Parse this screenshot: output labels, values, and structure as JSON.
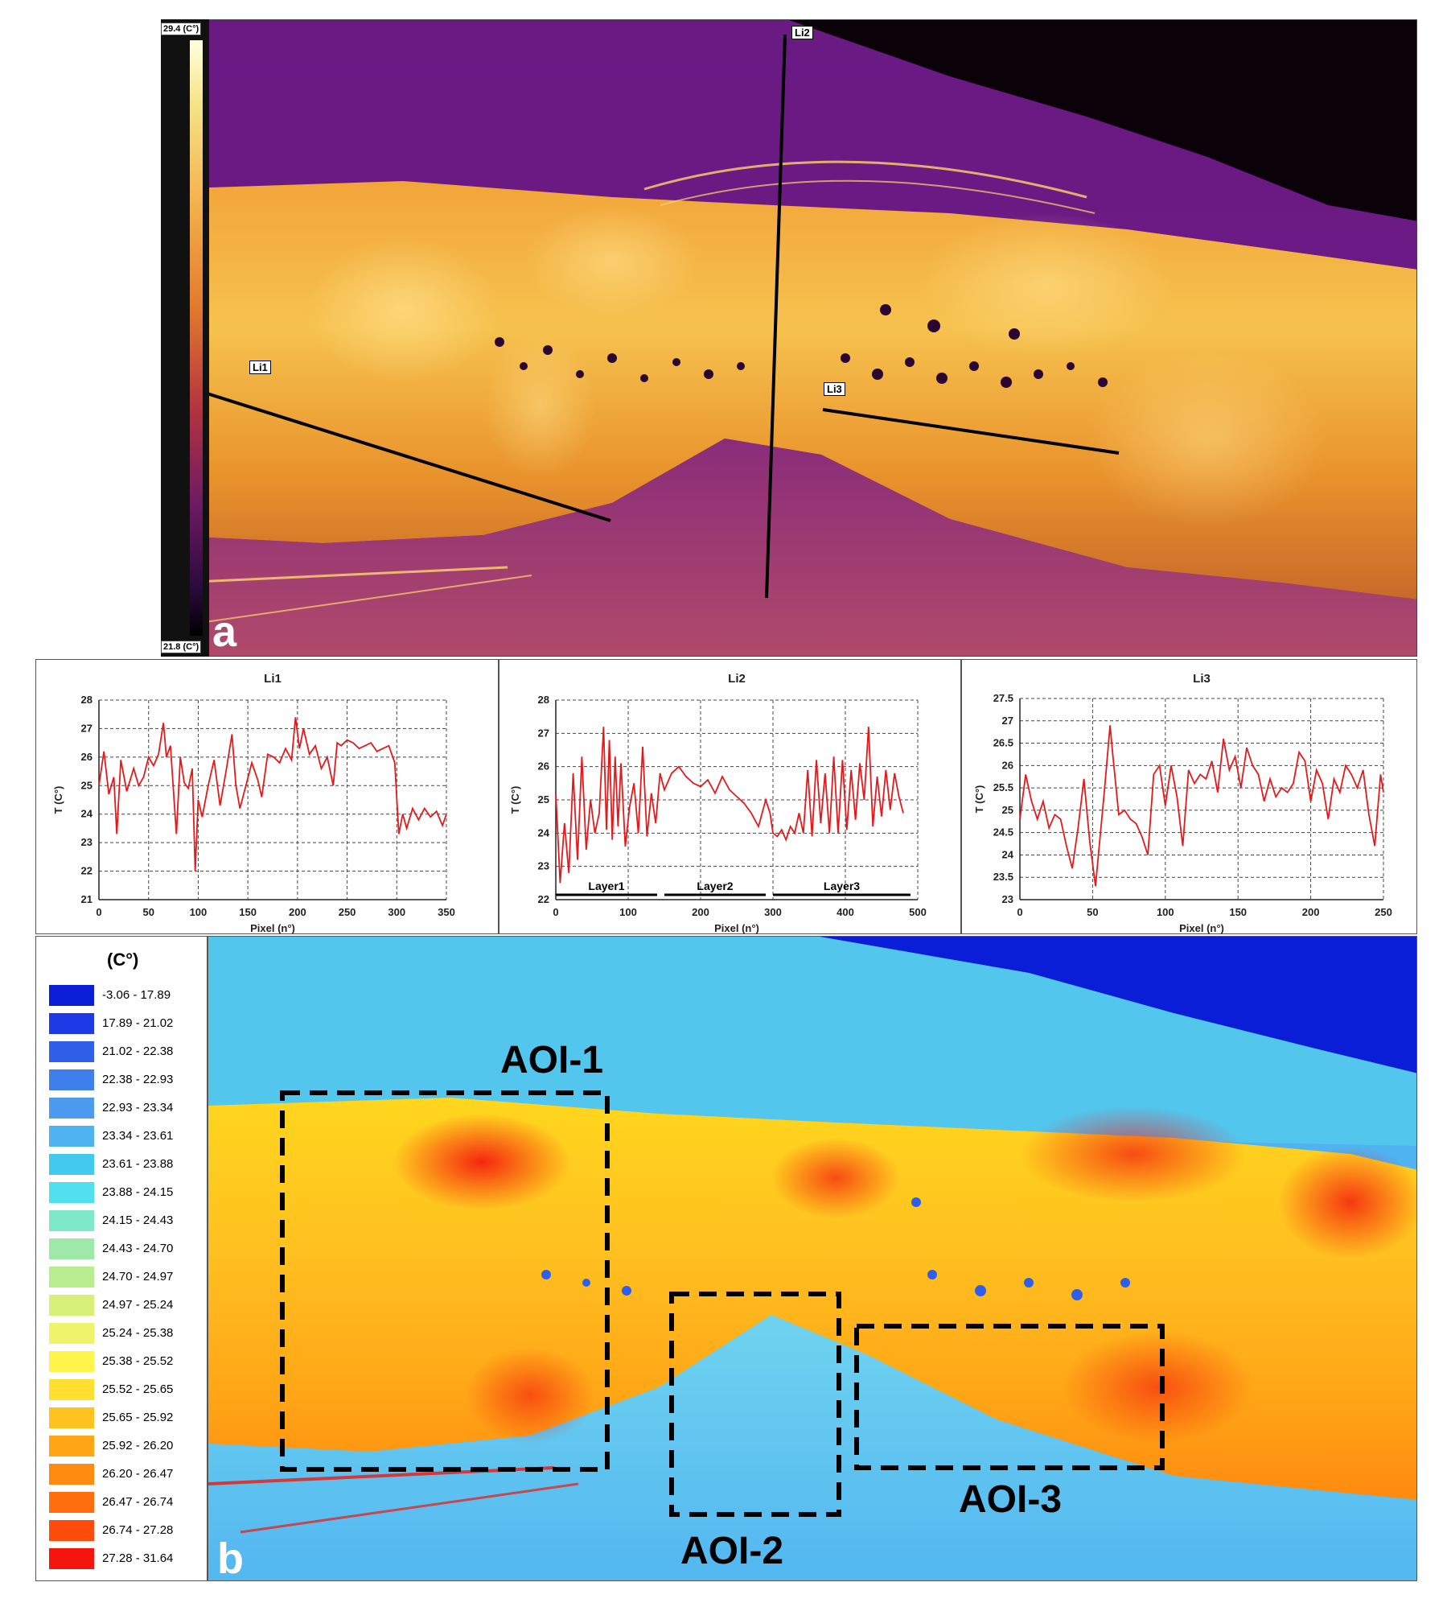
{
  "panel_a": {
    "letter": "a",
    "scale_max": "29.4 (C°)",
    "scale_min": "21.8 (C°)",
    "line_tags": [
      "Li1",
      "Li2",
      "Li3"
    ]
  },
  "panel_b": {
    "letter": "b",
    "legend_title": "(C°)",
    "legend": [
      {
        "label": "-3.06 - 17.89",
        "color": "#0a1ed8"
      },
      {
        "label": "17.89 - 21.02",
        "color": "#1e3ae6"
      },
      {
        "label": "21.02 - 22.38",
        "color": "#2f5ee8"
      },
      {
        "label": "22.38 - 22.93",
        "color": "#3f7fec"
      },
      {
        "label": "22.93 - 23.34",
        "color": "#4c9bef"
      },
      {
        "label": "23.34 - 23.61",
        "color": "#4fb3f1"
      },
      {
        "label": "23.61 - 23.88",
        "color": "#42c9f0"
      },
      {
        "label": "23.88 - 24.15",
        "color": "#53e0ee"
      },
      {
        "label": "24.15 - 24.43",
        "color": "#7ee8c8"
      },
      {
        "label": "24.43 - 24.70",
        "color": "#9ee8a8"
      },
      {
        "label": "24.70 - 24.97",
        "color": "#b8ec8e"
      },
      {
        "label": "24.97 - 25.24",
        "color": "#d6f07a"
      },
      {
        "label": "25.24 - 25.38",
        "color": "#eef36a"
      },
      {
        "label": "25.38 - 25.52",
        "color": "#fff44a"
      },
      {
        "label": "25.52 - 25.65",
        "color": "#ffe030"
      },
      {
        "label": "25.65 - 25.92",
        "color": "#ffc21e"
      },
      {
        "label": "25.92 - 26.20",
        "color": "#ffa516"
      },
      {
        "label": "26.20 - 26.47",
        "color": "#ff8a10"
      },
      {
        "label": "26.47 - 26.74",
        "color": "#ff6e0e"
      },
      {
        "label": "26.74 - 27.28",
        "color": "#ff4b0c"
      },
      {
        "label": "27.28 - 31.64",
        "color": "#f4150c"
      }
    ],
    "aoi_labels": [
      "AOI-1",
      "AOI-2",
      "AOI-3"
    ]
  },
  "chart_data": [
    {
      "type": "line",
      "title": "Li1",
      "xlabel": "Pixel (n°)",
      "ylabel": "T (C°)",
      "xlim": [
        0,
        350
      ],
      "ylim": [
        21,
        28
      ],
      "xticks": [
        "0",
        "50",
        "100",
        "150",
        "200",
        "250",
        "300",
        "350"
      ],
      "yticks": [
        "21",
        "22",
        "23",
        "24",
        "25",
        "26",
        "27",
        "28"
      ],
      "color": "#e31a1c",
      "x": [
        0,
        5,
        10,
        15,
        18,
        22,
        28,
        35,
        40,
        45,
        50,
        55,
        60,
        65,
        68,
        72,
        78,
        82,
        86,
        90,
        94,
        97,
        100,
        104,
        110,
        116,
        122,
        128,
        134,
        138,
        142,
        148,
        154,
        160,
        164,
        170,
        176,
        182,
        188,
        194,
        198,
        202,
        206,
        212,
        218,
        224,
        230,
        236,
        240,
        244,
        250,
        256,
        262,
        268,
        274,
        280,
        286,
        292,
        298,
        302,
        306,
        310,
        316,
        322,
        328,
        334,
        340,
        346,
        350
      ],
      "y": [
        25.0,
        26.2,
        24.7,
        25.3,
        23.3,
        25.9,
        24.8,
        25.6,
        25.0,
        25.3,
        26.0,
        25.7,
        26.1,
        27.2,
        26.0,
        26.4,
        23.3,
        26.0,
        25.1,
        24.9,
        25.6,
        22.0,
        24.5,
        23.9,
        25.0,
        25.9,
        24.3,
        25.5,
        26.8,
        25.0,
        24.2,
        25.0,
        25.8,
        25.2,
        24.6,
        26.1,
        26.0,
        25.8,
        26.3,
        25.9,
        27.4,
        26.3,
        27.0,
        26.1,
        26.4,
        25.6,
        26.0,
        25.0,
        26.5,
        26.4,
        26.6,
        26.5,
        26.3,
        26.4,
        26.5,
        26.2,
        26.3,
        26.4,
        25.8,
        23.3,
        24.0,
        23.5,
        24.2,
        23.8,
        24.2,
        23.9,
        24.1,
        23.6,
        24.0
      ]
    },
    {
      "type": "line",
      "title": "Li2",
      "xlabel": "Pixel (n°)",
      "ylabel": "T (C°)",
      "xlim": [
        0,
        500
      ],
      "ylim": [
        22,
        28
      ],
      "xticks": [
        "0",
        "100",
        "200",
        "300",
        "400",
        "500"
      ],
      "yticks": [
        "22",
        "23",
        "24",
        "25",
        "26",
        "27",
        "28"
      ],
      "color": "#e31a1c",
      "annotations": [
        {
          "label": "Layer1",
          "x_start": 0,
          "x_end": 140
        },
        {
          "label": "Layer2",
          "x_start": 150,
          "x_end": 290
        },
        {
          "label": "Layer3",
          "x_start": 300,
          "x_end": 490
        }
      ],
      "x": [
        0,
        6,
        12,
        18,
        24,
        30,
        36,
        42,
        48,
        54,
        60,
        66,
        70,
        74,
        78,
        82,
        86,
        90,
        96,
        102,
        108,
        114,
        120,
        126,
        132,
        138,
        144,
        150,
        160,
        170,
        180,
        190,
        200,
        210,
        220,
        230,
        240,
        250,
        260,
        270,
        280,
        290,
        296,
        300,
        306,
        312,
        318,
        324,
        330,
        336,
        342,
        348,
        354,
        360,
        366,
        372,
        378,
        384,
        390,
        396,
        402,
        408,
        414,
        420,
        426,
        432,
        438,
        444,
        450,
        456,
        462,
        468,
        474,
        480
      ],
      "y": [
        25.2,
        22.5,
        24.3,
        22.8,
        25.8,
        23.2,
        26.3,
        23.5,
        25.0,
        24.0,
        24.6,
        27.2,
        24.1,
        26.8,
        23.8,
        26.3,
        24.2,
        26.1,
        23.6,
        24.8,
        25.5,
        24.0,
        26.6,
        23.9,
        25.2,
        24.3,
        25.8,
        25.3,
        25.8,
        26.0,
        25.7,
        25.5,
        25.4,
        25.6,
        25.2,
        25.7,
        25.3,
        25.1,
        24.9,
        24.6,
        24.2,
        25.0,
        24.6,
        24.0,
        23.9,
        24.1,
        23.8,
        24.2,
        24.0,
        24.6,
        24.0,
        25.9,
        23.9,
        26.2,
        24.3,
        25.8,
        24.0,
        26.3,
        24.0,
        26.2,
        24.1,
        25.9,
        24.4,
        26.1,
        25.0,
        27.2,
        24.2,
        25.7,
        24.5,
        25.9,
        24.7,
        25.8,
        25.1,
        24.6
      ]
    },
    {
      "type": "line",
      "title": "Li3",
      "xlabel": "Pixel (n°)",
      "ylabel": "T (C°)",
      "xlim": [
        0,
        250
      ],
      "ylim": [
        23,
        27.5
      ],
      "xticks": [
        "0",
        "50",
        "100",
        "150",
        "200",
        "250"
      ],
      "yticks": [
        "23",
        "23.5",
        "24",
        "24.5",
        "25",
        "25.5",
        "26",
        "26.5",
        "27",
        "27.5"
      ],
      "color": "#e31a1c",
      "x": [
        0,
        4,
        8,
        12,
        16,
        20,
        24,
        28,
        32,
        36,
        40,
        44,
        48,
        52,
        54,
        58,
        62,
        64,
        68,
        72,
        76,
        80,
        84,
        88,
        92,
        96,
        100,
        104,
        108,
        112,
        116,
        120,
        124,
        128,
        132,
        136,
        140,
        144,
        148,
        152,
        156,
        160,
        164,
        168,
        172,
        176,
        180,
        184,
        188,
        192,
        196,
        200,
        204,
        208,
        212,
        216,
        220,
        224,
        228,
        232,
        236,
        240,
        244,
        248,
        250
      ],
      "y": [
        24.8,
        25.8,
        25.2,
        24.8,
        25.2,
        24.6,
        24.9,
        24.8,
        24.2,
        23.7,
        24.6,
        25.7,
        24.3,
        23.3,
        24.0,
        25.4,
        26.9,
        26.2,
        24.9,
        25.0,
        24.8,
        24.7,
        24.4,
        24.0,
        25.8,
        26.0,
        25.1,
        26.0,
        25.3,
        24.2,
        25.9,
        25.6,
        25.8,
        25.7,
        26.1,
        25.4,
        26.6,
        25.9,
        26.2,
        25.5,
        26.4,
        26.0,
        25.8,
        25.2,
        25.7,
        25.3,
        25.5,
        25.4,
        25.6,
        26.3,
        26.1,
        25.2,
        25.9,
        25.6,
        24.8,
        25.7,
        25.4,
        26.0,
        25.8,
        25.5,
        25.9,
        24.9,
        24.2,
        25.8,
        25.4
      ]
    }
  ]
}
